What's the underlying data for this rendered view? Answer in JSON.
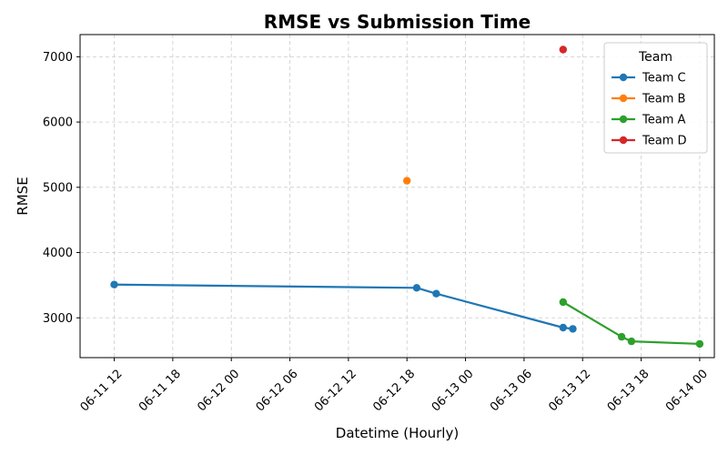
{
  "chart_data": {
    "type": "line",
    "title": "RMSE vs Submission Time",
    "xlabel": "Datetime (Hourly)",
    "ylabel": "RMSE",
    "xlim": [
      "2024-06-11 08:30",
      "2024-06-14 01:30"
    ],
    "ylim": [
      2390,
      7340
    ],
    "x_ticks": [
      "06-11 12",
      "06-11 18",
      "06-12 00",
      "06-12 06",
      "06-12 12",
      "06-12 18",
      "06-13 00",
      "06-13 06",
      "06-13 12",
      "06-13 18",
      "06-14 00"
    ],
    "x_tick_values": [
      "2024-06-11 12:00",
      "2024-06-11 18:00",
      "2024-06-12 00:00",
      "2024-06-12 06:00",
      "2024-06-12 12:00",
      "2024-06-12 18:00",
      "2024-06-13 00:00",
      "2024-06-13 06:00",
      "2024-06-13 12:00",
      "2024-06-13 18:00",
      "2024-06-14 00:00"
    ],
    "y_ticks": [
      "3000",
      "4000",
      "5000",
      "6000",
      "7000"
    ],
    "y_tick_values": [
      3000,
      4000,
      5000,
      6000,
      7000
    ],
    "grid": true,
    "legend": {
      "title": "Team",
      "position": "top-right"
    },
    "series": [
      {
        "name": "Team C",
        "color": "#1f77b4",
        "points": [
          {
            "x": "2024-06-11 12:00",
            "y": 3510
          },
          {
            "x": "2024-06-12 19:00",
            "y": 3460
          },
          {
            "x": "2024-06-12 21:00",
            "y": 3370
          },
          {
            "x": "2024-06-13 10:00",
            "y": 2850
          },
          {
            "x": "2024-06-13 11:00",
            "y": 2830
          }
        ]
      },
      {
        "name": "Team B",
        "color": "#ff7f0e",
        "points": [
          {
            "x": "2024-06-12 18:00",
            "y": 5100
          }
        ]
      },
      {
        "name": "Team A",
        "color": "#2ca02c",
        "points": [
          {
            "x": "2024-06-13 10:00",
            "y": 3240
          },
          {
            "x": "2024-06-13 16:00",
            "y": 2710
          },
          {
            "x": "2024-06-13 17:00",
            "y": 2640
          },
          {
            "x": "2024-06-14 00:00",
            "y": 2600
          }
        ]
      },
      {
        "name": "Team D",
        "color": "#d62728",
        "points": [
          {
            "x": "2024-06-13 10:00",
            "y": 7110
          }
        ]
      }
    ]
  }
}
